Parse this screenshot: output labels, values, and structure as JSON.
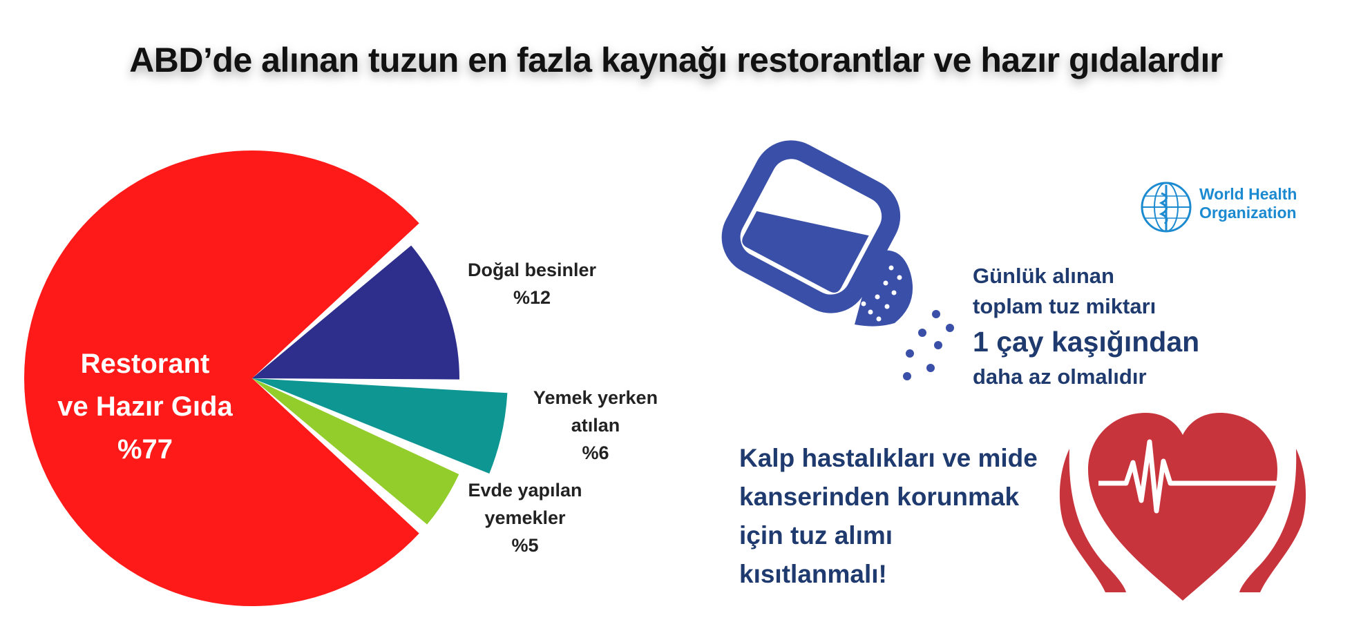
{
  "title": "ABD’de alınan tuzun en fazla kaynağı restorantlar ve hazır gıdalardır",
  "chart_data": {
    "type": "pie",
    "slices": [
      {
        "label_lines": [
          "Restorant",
          "ve Hazır Gıda",
          "%77"
        ],
        "value": 77,
        "color": "#ff1a1a"
      },
      {
        "label_lines": [
          "Doğal besinler",
          "%12"
        ],
        "value": 12,
        "color": "#2e2e8c"
      },
      {
        "label_lines": [
          "Yemek yerken",
          "atılan",
          "%6"
        ],
        "value": 6,
        "color": "#0e9692"
      },
      {
        "label_lines": [
          "Evde yapılan",
          "yemekler",
          "%5"
        ],
        "value": 5,
        "color": "#93cd2b"
      }
    ]
  },
  "who": {
    "name_line1": "World Health",
    "name_line2": "Organization"
  },
  "salt_info": {
    "line1": "Günlük alınan",
    "line2": "toplam tuz miktarı",
    "line3": "1 çay kaşığından",
    "line4": "daha az olmalıdır"
  },
  "heart_info": {
    "line1": "Kalp hastalıkları ve mide",
    "line2": "kanserinden korunmak",
    "line3": "için tuz alımı",
    "line4": "kısıtlanmalı!"
  },
  "colors": {
    "salt_blue": "#3a50a8",
    "heart_red": "#c8343c",
    "text_navy": "#1f3a6e",
    "who_blue": "#1c8ad0"
  }
}
